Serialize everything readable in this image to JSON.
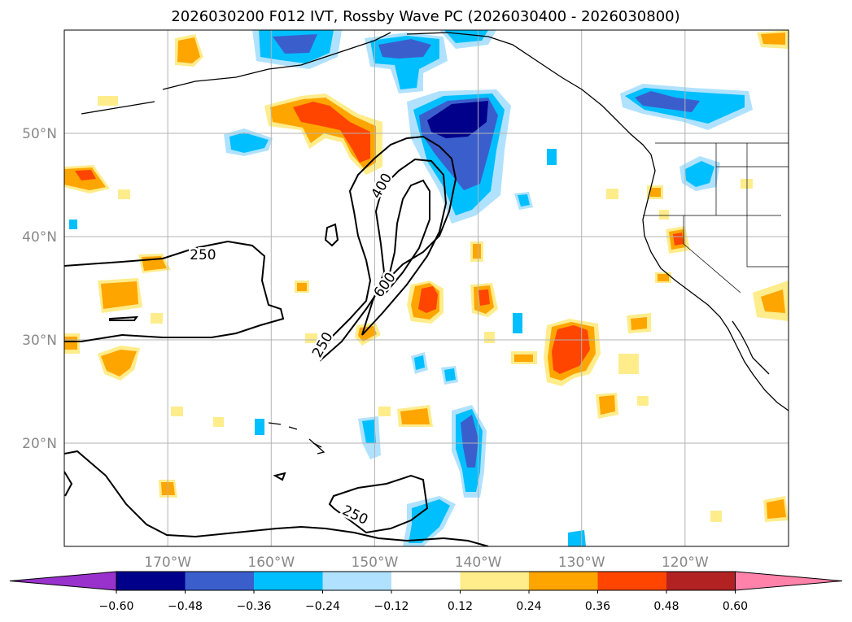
{
  "title": "2026030200 F012 IVT, Rossby Wave PC (2026030400 - 2026030800)",
  "map": {
    "lat_labels": [
      {
        "lat": 50,
        "text": "50°N"
      },
      {
        "lat": 40,
        "text": "40°N"
      },
      {
        "lat": 30,
        "text": "30°N"
      },
      {
        "lat": 20,
        "text": "20°N"
      }
    ],
    "lon_labels": [
      {
        "lon": -170,
        "text": "170°W"
      },
      {
        "lon": -160,
        "text": "160°W"
      },
      {
        "lon": -150,
        "text": "150°W"
      },
      {
        "lon": -140,
        "text": "140°W"
      },
      {
        "lon": -130,
        "text": "130°W"
      },
      {
        "lon": -120,
        "text": "120°W"
      }
    ],
    "extent": {
      "lon_min": -180,
      "lon_max": -110,
      "lat_min": 10,
      "lat_max": 60
    },
    "contour_labels": [
      {
        "text": "250",
        "lon": -166.6,
        "lat": 38.2,
        "rot": 0
      },
      {
        "text": "400",
        "lon": -149.3,
        "lat": 44.9,
        "rot": -60
      },
      {
        "text": "600",
        "lon": -149.0,
        "lat": 35.3,
        "rot": -55
      },
      {
        "text": "250",
        "lon": -155.0,
        "lat": 29.5,
        "rot": -60
      },
      {
        "text": "250",
        "lon": -151.9,
        "lat": 13.0,
        "rot": 25
      }
    ]
  },
  "colorbar": {
    "colors": [
      "#9932cc",
      "#00008b",
      "#3a5fcd",
      "#00bfff",
      "#b0e2ff",
      "#ffffff",
      "#ffec8b",
      "#ffa500",
      "#ff4500",
      "#b22222",
      "#ff82ab"
    ],
    "tick_labels": [
      "−0.60",
      "−0.48",
      "−0.36",
      "−0.24",
      "−0.12",
      "0.12",
      "0.24",
      "0.36",
      "0.48",
      "0.60"
    ]
  }
}
